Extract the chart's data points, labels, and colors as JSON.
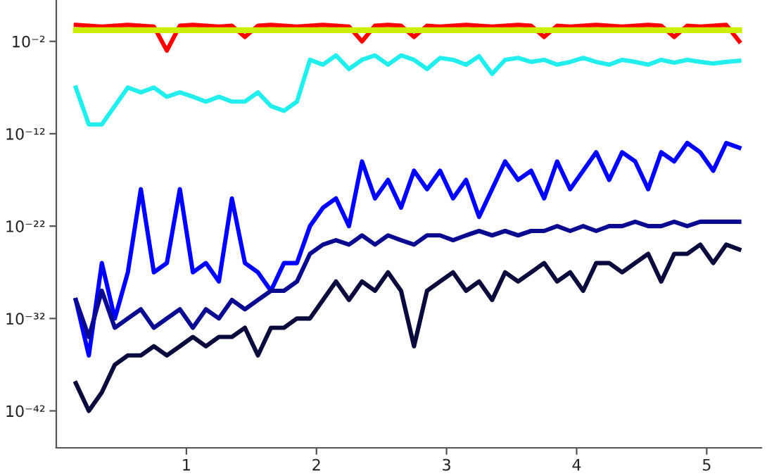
{
  "chart_data": {
    "type": "line",
    "log": "y",
    "grid": false,
    "legend": false,
    "marker": "none",
    "line_style": "solid",
    "x": [
      0.15,
      0.25,
      0.35,
      0.45,
      0.55,
      0.65,
      0.75,
      0.85,
      0.95,
      1.05,
      1.15,
      1.25,
      1.35,
      1.45,
      1.55,
      1.65,
      1.75,
      1.85,
      1.95,
      2.05,
      2.15,
      2.25,
      2.35,
      2.45,
      2.55,
      2.65,
      2.75,
      2.85,
      2.95,
      3.05,
      3.15,
      3.25,
      3.35,
      3.45,
      3.55,
      3.65,
      3.75,
      3.85,
      3.95,
      4.05,
      4.15,
      4.25,
      4.35,
      4.45,
      4.55,
      4.65,
      4.75,
      4.85,
      4.95,
      5.05,
      5.15,
      5.25
    ],
    "xlim": [
      0,
      5.42
    ],
    "xticks": [
      1,
      2,
      3,
      4,
      5
    ],
    "ylim": [
      1e-46,
      300.0
    ],
    "yticks": [
      {
        "value": 0.01,
        "label": "10⁻²"
      },
      {
        "value": 1e-12,
        "label": "10⁻¹²"
      },
      {
        "value": 1e-22,
        "label": "10⁻²²"
      },
      {
        "value": 1e-32,
        "label": "10⁻³²"
      },
      {
        "value": 1e-42,
        "label": "10⁻⁴²"
      }
    ],
    "series": [
      {
        "color": "#ff0000",
        "values": [
          0.6,
          0.5,
          0.4,
          0.5,
          0.6,
          0.5,
          0.4,
          0.001,
          0.5,
          0.6,
          0.5,
          0.4,
          0.5,
          0.03,
          0.5,
          0.6,
          0.5,
          0.4,
          0.5,
          0.6,
          0.5,
          0.4,
          0.01,
          0.5,
          0.6,
          0.5,
          0.03,
          0.5,
          0.4,
          0.5,
          0.6,
          0.5,
          0.4,
          0.5,
          0.6,
          0.5,
          0.03,
          0.5,
          0.4,
          0.5,
          0.6,
          0.5,
          0.4,
          0.5,
          0.6,
          0.5,
          0.03,
          0.5,
          0.4,
          0.5,
          0.6,
          0.01
        ]
      },
      {
        "color": "#ccee00",
        "values": [
          0.16,
          0.16,
          0.16,
          0.16,
          0.16,
          0.16,
          0.16,
          0.16,
          0.16,
          0.16,
          0.16,
          0.16,
          0.16,
          0.16,
          0.16,
          0.16,
          0.16,
          0.16,
          0.16,
          0.16,
          0.16,
          0.16,
          0.16,
          0.16,
          0.16,
          0.16,
          0.16,
          0.16,
          0.16,
          0.16,
          0.16,
          0.16,
          0.16,
          0.16,
          0.16,
          0.16,
          0.16,
          0.16,
          0.16,
          0.16,
          0.16,
          0.16,
          0.16,
          0.16,
          0.16,
          0.16,
          0.16,
          0.16,
          0.16,
          0.16,
          0.16,
          0.16
        ]
      },
      {
        "color": "#22eeee",
        "values": [
          1e-07,
          1e-11,
          1e-11,
          1e-09,
          1e-07,
          3e-08,
          1e-07,
          1e-08,
          3e-08,
          1e-08,
          3e-09,
          1e-08,
          3e-09,
          3e-09,
          3e-08,
          1e-09,
          3e-10,
          3e-09,
          0.0001,
          3e-05,
          0.0003,
          1e-05,
          0.0001,
          0.0003,
          3e-05,
          0.0003,
          0.0001,
          1e-05,
          0.00016,
          0.0001,
          3e-05,
          0.00025,
          3e-06,
          0.0001,
          0.00016,
          6e-05,
          0.0001,
          3e-05,
          6e-05,
          0.00016,
          6e-05,
          3e-05,
          0.0001,
          6e-05,
          3e-05,
          0.0001,
          5e-05,
          0.0001,
          6e-05,
          4e-05,
          6e-05,
          8e-05
        ]
      },
      {
        "color": "#0000ff",
        "values": [
          1e-30,
          1e-36,
          1e-26,
          1e-32,
          1e-27,
          1e-18,
          1e-27,
          1e-26,
          1e-18,
          1e-27,
          1e-26,
          1e-28,
          1e-19,
          1e-26,
          1e-27,
          1e-29,
          1e-26,
          1e-26,
          1e-22,
          1e-20,
          1e-19,
          1e-22,
          1e-15,
          1e-19,
          1e-17,
          1e-20,
          1e-16,
          1e-18,
          1e-16,
          1e-19,
          1e-17,
          1e-21,
          1e-18,
          1e-15,
          1e-17,
          1e-16,
          1e-19,
          1e-15,
          1e-18,
          1e-16,
          1e-14,
          1e-17,
          1e-14,
          1e-15,
          1e-18,
          1e-14,
          1e-15,
          1e-13,
          1e-14,
          1e-16,
          1e-13,
          3e-14
        ]
      },
      {
        "color": "#0a0a90",
        "values": [
          1e-30,
          1e-34,
          1e-29,
          1e-33,
          1e-32,
          1e-31,
          1e-33,
          1e-32,
          1e-31,
          1e-33,
          1e-31,
          1e-32,
          1e-30,
          1e-31,
          1e-30,
          1e-29,
          1e-29,
          1e-28,
          1e-25,
          1e-24,
          3e-24,
          1e-24,
          1e-23,
          1e-24,
          1e-23,
          3e-24,
          1e-24,
          1e-23,
          1e-23,
          3e-24,
          1e-23,
          3e-23,
          1e-23,
          3e-23,
          1e-23,
          3e-23,
          3e-23,
          1e-22,
          3e-23,
          1e-22,
          3e-23,
          1e-22,
          1e-22,
          3e-22,
          1e-22,
          1e-22,
          3e-22,
          1e-22,
          3e-22,
          3e-22,
          3e-22,
          3e-22
        ]
      },
      {
        "color": "#0a0a3c",
        "values": [
          1e-39,
          1e-42,
          1e-40,
          1e-37,
          1e-36,
          1e-36,
          1e-35,
          1e-36,
          1e-35,
          1e-34,
          1e-35,
          1e-34,
          1e-34,
          1e-33,
          1e-36,
          1e-33,
          1e-33,
          1e-32,
          1e-32,
          1e-30,
          1e-28,
          1e-30,
          1e-28,
          1e-29,
          1e-27,
          1e-29,
          1e-35,
          1e-29,
          1e-28,
          1e-27,
          1e-29,
          1e-28,
          1e-30,
          1e-27,
          1e-28,
          1e-27,
          1e-26,
          1e-28,
          1e-27,
          1e-29,
          1e-26,
          1e-26,
          1e-27,
          1e-26,
          1e-25,
          1e-28,
          1e-25,
          1e-25,
          1e-24,
          1e-26,
          1e-24,
          3e-25
        ]
      }
    ]
  }
}
